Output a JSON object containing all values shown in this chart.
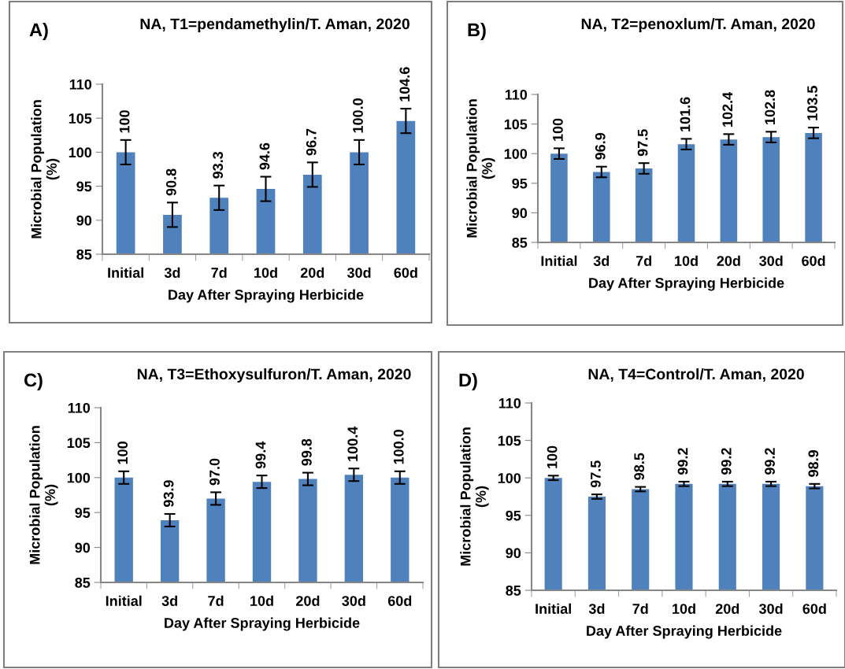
{
  "chart_data": [
    {
      "type": "bar",
      "title": "NA, T1=pendamethylin/T. Aman, 2020",
      "xlabel": "Day After Spraying Herbicide",
      "ylabel": "Microbial Population\n(%)",
      "annotations": [
        "A)"
      ],
      "categories": [
        "Initial",
        "3d",
        "7d",
        "10d",
        "20d",
        "30d",
        "60d"
      ],
      "values": [
        100,
        90.8,
        93.3,
        94.6,
        96.7,
        100.0,
        104.6
      ],
      "errors": [
        1.8,
        1.8,
        1.8,
        1.8,
        1.8,
        1.8,
        1.8
      ],
      "value_labels": [
        "100",
        "90.8",
        "93.3",
        "94.6",
        "96.7",
        "100.0",
        "104.6"
      ],
      "color": "#4f81bd",
      "ylim": [
        85,
        110
      ],
      "yticks": [
        85,
        90,
        95,
        100,
        105,
        110
      ],
      "grid": false,
      "legend": false
    },
    {
      "type": "bar",
      "title": "NA, T2=penoxlum/T. Aman, 2020",
      "xlabel": "Day After Spraying Herbicide",
      "ylabel": "Microbial Population\n(%)",
      "annotations": [
        "B)"
      ],
      "categories": [
        "Initial",
        "3d",
        "7d",
        "10d",
        "20d",
        "30d",
        "60d"
      ],
      "values": [
        100,
        96.9,
        97.5,
        101.6,
        102.4,
        102.8,
        103.5
      ],
      "errors": [
        0.9,
        0.9,
        0.9,
        0.9,
        0.9,
        0.9,
        0.9
      ],
      "value_labels": [
        "100",
        "96.9",
        "97.5",
        "101.6",
        "102.4",
        "102.8",
        "103.5"
      ],
      "color": "#4f81bd",
      "ylim": [
        85,
        110
      ],
      "yticks": [
        85,
        90,
        95,
        100,
        105,
        110
      ],
      "grid": false,
      "legend": false
    },
    {
      "type": "bar",
      "title": "NA, T3=Ethoxysulfuron/T. Aman, 2020",
      "xlabel": "Day After Spraying Herbicide",
      "ylabel": "Microbial Population\n(%)",
      "annotations": [
        "C)"
      ],
      "categories": [
        "Initial",
        "3d",
        "7d",
        "10d",
        "20d",
        "30d",
        "60d"
      ],
      "values": [
        100,
        93.9,
        97.0,
        99.4,
        99.8,
        100.4,
        100.0
      ],
      "errors": [
        0.9,
        0.9,
        0.9,
        0.9,
        0.9,
        0.9,
        0.9
      ],
      "value_labels": [
        "100",
        "93.9",
        "97.0",
        "99.4",
        "99.8",
        "100.4",
        "100.0"
      ],
      "color": "#4f81bd",
      "ylim": [
        85,
        110
      ],
      "yticks": [
        85,
        90,
        95,
        100,
        105,
        110
      ],
      "grid": false,
      "legend": false
    },
    {
      "type": "bar",
      "title": "NA, T4=Control/T. Aman, 2020",
      "xlabel": "Day After Spraying Herbicide",
      "ylabel": "Microbial Population\n(%)",
      "annotations": [
        "D)"
      ],
      "categories": [
        "Initial",
        "3d",
        "7d",
        "10d",
        "20d",
        "30d",
        "60d"
      ],
      "values": [
        100,
        97.5,
        98.5,
        99.2,
        99.2,
        99.2,
        98.9
      ],
      "errors": [
        0.3,
        0.3,
        0.3,
        0.3,
        0.3,
        0.3,
        0.3
      ],
      "value_labels": [
        "100",
        "97.5",
        "98.5",
        "99.2",
        "99.2",
        "99.2",
        "98.9"
      ],
      "color": "#4f81bd",
      "ylim": [
        85,
        110
      ],
      "yticks": [
        85,
        90,
        95,
        100,
        105,
        110
      ],
      "grid": false,
      "legend": false
    }
  ]
}
